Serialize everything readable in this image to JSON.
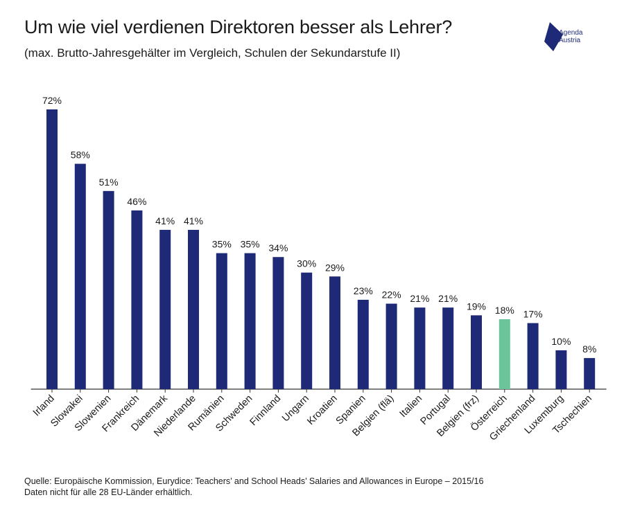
{
  "header": {
    "title": "Um wie viel verdienen Direktoren besser als Lehrer?",
    "subtitle": "(max. Brutto-Jahresgehälter im Vergleich, Schulen der Sekundarstufe II)"
  },
  "logo": {
    "line1": "Agenda",
    "line2": "Austria",
    "color": "#1e2a78"
  },
  "chart_data": {
    "type": "bar",
    "title": "Um wie viel verdienen Direktoren besser als Lehrer?",
    "subtitle": "(max. Brutto-Jahresgehälter im Vergleich, Schulen der Sekundarstufe II)",
    "xlabel": "",
    "ylabel": "",
    "categories": [
      "Irland",
      "Slowakei",
      "Slowenien",
      "Frankreich",
      "Dänemark",
      "Niederlande",
      "Rumänien",
      "Schweden",
      "Finnland",
      "Ungarn",
      "Kroatien",
      "Spanien",
      "Belgien (flä)",
      "Italien",
      "Portugal",
      "Belgien (frz)",
      "Österreich",
      "Griechenland",
      "Luxemburg",
      "Tschechien"
    ],
    "values": [
      72,
      58,
      51,
      46,
      41,
      41,
      35,
      35,
      34,
      30,
      29,
      23,
      22,
      21,
      21,
      19,
      18,
      17,
      10,
      8
    ],
    "value_labels": [
      "72%",
      "58%",
      "51%",
      "46%",
      "41%",
      "41%",
      "35%",
      "35%",
      "34%",
      "30%",
      "29%",
      "23%",
      "22%",
      "21%",
      "21%",
      "19%",
      "18%",
      "17%",
      "10%",
      "8%"
    ],
    "unit": "%",
    "ylim": [
      0,
      72
    ],
    "grid": false,
    "highlight_category": "Österreich",
    "colors": {
      "default": "#1e2a78",
      "highlight": "#6cc49a",
      "axis": "#333333"
    }
  },
  "footer": {
    "source": "Quelle: Europäische Kommission, Eurydice: Teachers’ and School Heads’ Salaries and Allowances in Europe – 2015/16",
    "note": "Daten nicht für alle 28 EU-Länder erhältlich."
  }
}
